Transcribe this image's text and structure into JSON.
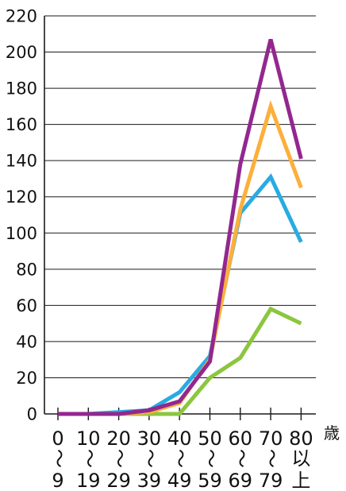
{
  "chart_data": {
    "type": "line",
    "categories": [
      "0〜9",
      "10〜19",
      "20〜29",
      "30〜39",
      "40〜49",
      "50〜59",
      "60〜69",
      "70〜79",
      "80以上"
    ],
    "category_lines": [
      [
        "0",
        "〜",
        "9"
      ],
      [
        "10",
        "〜",
        "19"
      ],
      [
        "20",
        "〜",
        "29"
      ],
      [
        "30",
        "〜",
        "39"
      ],
      [
        "40",
        "〜",
        "49"
      ],
      [
        "50",
        "〜",
        "59"
      ],
      [
        "60",
        "〜",
        "69"
      ],
      [
        "70",
        "〜",
        "79"
      ],
      [
        "80",
        "以",
        "上"
      ]
    ],
    "x_unit": "歳",
    "ylim": [
      0,
      220
    ],
    "yticks": [
      0,
      20,
      40,
      60,
      80,
      100,
      120,
      140,
      160,
      180,
      200,
      220
    ],
    "grid": true,
    "series": [
      {
        "color": "#8cc63f",
        "values": [
          0,
          0,
          0,
          0,
          0,
          20,
          31,
          58,
          50
        ]
      },
      {
        "color": "#29abe2",
        "values": [
          0,
          0,
          1,
          2,
          12,
          32,
          111,
          131,
          95
        ]
      },
      {
        "color": "#fbb03b",
        "values": [
          0,
          0,
          0,
          1,
          6,
          30,
          113,
          170,
          125
        ]
      },
      {
        "color": "#93278f",
        "values": [
          0,
          0,
          0,
          2,
          7,
          29,
          138,
          207,
          141
        ]
      }
    ]
  }
}
